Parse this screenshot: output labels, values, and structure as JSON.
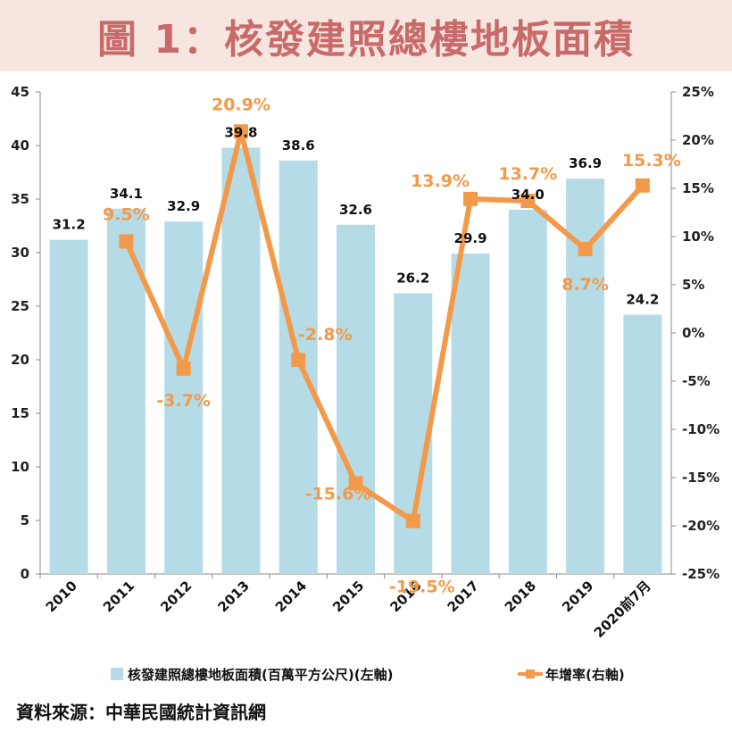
{
  "title": "圖 1：核發建照總樓地板面積",
  "source": "資料來源：中華民國統計資訊網",
  "colors": {
    "bar": "#b5dbe7",
    "line": "#f39a4a",
    "title_bg": "#f7e6e0",
    "title_text": "#c96a6a"
  },
  "chart_data": {
    "type": "bar",
    "categories": [
      "2010",
      "2011",
      "2012",
      "2013",
      "2014",
      "2015",
      "2016",
      "2017",
      "2018",
      "2019",
      "2020前7月"
    ],
    "series": [
      {
        "name": "核發建照總樓地板面積(百萬平方公尺)(左軸)",
        "type": "bar",
        "axis": "left",
        "values": [
          31.2,
          34.1,
          32.9,
          39.8,
          38.6,
          32.6,
          26.2,
          29.9,
          34.0,
          36.9,
          24.2
        ],
        "labels": [
          "31.2",
          "34.1",
          "32.9",
          "39.8",
          "38.6",
          "32.6",
          "26.2",
          "29.9",
          "34.0",
          "36.9",
          "24.2"
        ]
      },
      {
        "name": "年增率(右軸)",
        "type": "line",
        "axis": "right",
        "values": [
          null,
          9.5,
          -3.7,
          20.9,
          -2.8,
          -15.6,
          -19.5,
          13.9,
          13.7,
          8.7,
          15.3
        ],
        "labels": [
          "",
          "9.5%",
          "-3.7%",
          "20.9%",
          "-2.8%",
          "-15.6%",
          "-19.5%",
          "13.9%",
          "13.7%",
          "8.7%",
          "15.3%"
        ]
      }
    ],
    "y_left": {
      "ylim": [
        0,
        45
      ],
      "ticks": [
        "0",
        "5",
        "10",
        "15",
        "20",
        "25",
        "30",
        "35",
        "40",
        "45"
      ]
    },
    "y_right": {
      "ylim": [
        -25,
        25
      ],
      "ticks": [
        "-25%",
        "-20%",
        "-15%",
        "-10%",
        "-5%",
        "0%",
        "5%",
        "10%",
        "15%",
        "20%",
        "25%"
      ]
    },
    "grid": false,
    "legend_position": "bottom"
  }
}
